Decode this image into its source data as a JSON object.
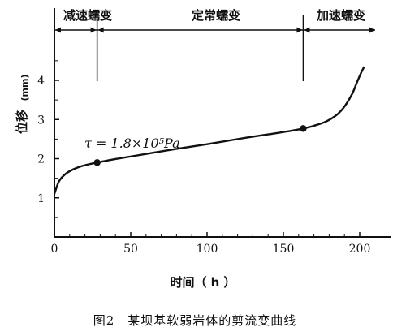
{
  "chart_data": {
    "type": "line",
    "caption": "图2　某坝基软弱岩体的剪流变曲线",
    "xlabel": "时间（ h ）",
    "ylabel": "位移",
    "ylabel_unit": "(mm)",
    "xlim": [
      0,
      210
    ],
    "ylim": [
      0,
      4.9
    ],
    "xticks": [
      0,
      50,
      100,
      150,
      200
    ],
    "yticks": [
      1,
      2,
      3,
      4
    ],
    "stage_labels": [
      {
        "text": "减速蠕变",
        "from": 0,
        "to": 28
      },
      {
        "text": "定常蠕变",
        "from": 28,
        "to": 163
      },
      {
        "text": "加速蠕变",
        "from": 163,
        "to": 210
      }
    ],
    "stage_boundaries": [
      28,
      163
    ],
    "annotation": {
      "text": "τ = 1.8×10⁵Pa",
      "x": 28,
      "y": 2.25
    },
    "series": [
      {
        "x": [
          0,
          3,
          7,
          12,
          18,
          23,
          28,
          40,
          60,
          80,
          100,
          120,
          140,
          155,
          163,
          170,
          178,
          185,
          190,
          195,
          198,
          201,
          203
        ],
        "y": [
          1.1,
          1.42,
          1.6,
          1.72,
          1.81,
          1.86,
          1.9,
          1.99,
          2.12,
          2.25,
          2.37,
          2.5,
          2.62,
          2.71,
          2.77,
          2.84,
          2.95,
          3.12,
          3.33,
          3.65,
          3.93,
          4.2,
          4.35
        ]
      }
    ],
    "markers": [
      {
        "x": 28,
        "y": 1.9
      },
      {
        "x": 163,
        "y": 2.77
      }
    ]
  }
}
